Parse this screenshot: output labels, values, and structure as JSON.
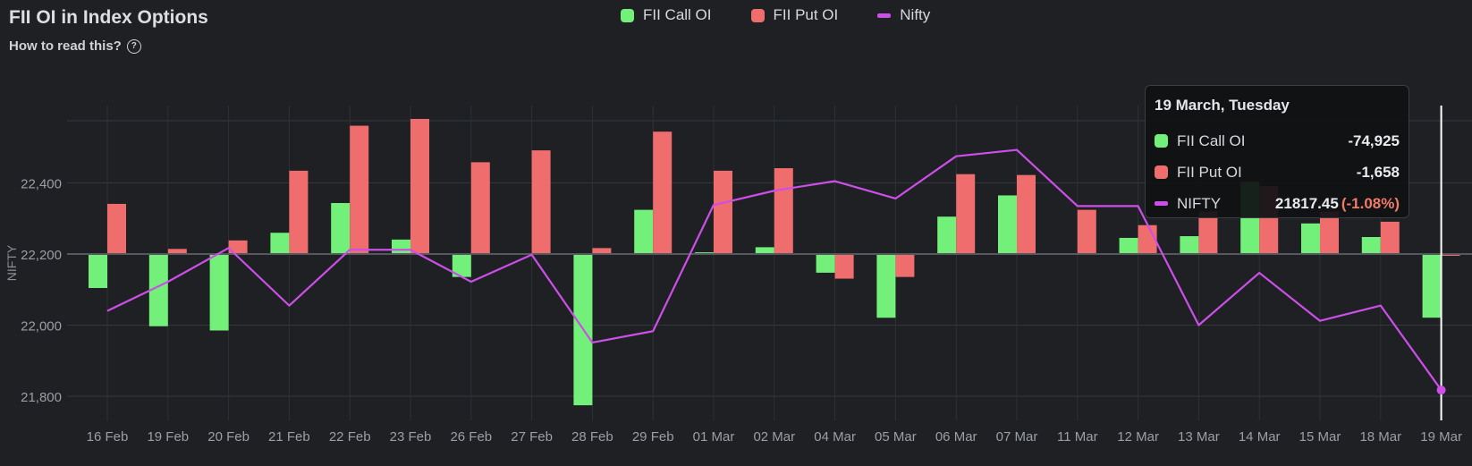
{
  "header": {
    "title": "FII OI in Index Options",
    "subtitle": "How to read this?",
    "help_icon": "?"
  },
  "legend": [
    {
      "label": "FII Call OI",
      "color": "#72f07a",
      "kind": "box"
    },
    {
      "label": "FII Put OI",
      "color": "#ef6d6d",
      "kind": "box"
    },
    {
      "label": "Nifty",
      "color": "#cc4fe8",
      "kind": "line"
    }
  ],
  "tooltip": {
    "date": "19 March, Tuesday",
    "call_label": "FII Call OI",
    "call_value": "-74,925",
    "put_label": "FII Put OI",
    "put_value": "-1,658",
    "nifty_label": "NIFTY",
    "nifty_value": "21817.45",
    "nifty_change": "(-1.08%)"
  },
  "chart_data": {
    "type": "bar",
    "categories": [
      "16 Feb",
      "19 Feb",
      "20 Feb",
      "21 Feb",
      "22 Feb",
      "23 Feb",
      "26 Feb",
      "27 Feb",
      "28 Feb",
      "29 Feb",
      "01 Mar",
      "02 Mar",
      "04 Mar",
      "05 Mar",
      "06 Mar",
      "07 Mar",
      "11 Mar",
      "12 Mar",
      "13 Mar",
      "14 Mar",
      "15 Mar",
      "18 Mar",
      "19 Mar"
    ],
    "series": [
      {
        "name": "FII Call OI",
        "type": "bar",
        "color": "#72f07a",
        "values": [
          -40000,
          -85000,
          -90000,
          25000,
          60000,
          17000,
          -27000,
          0,
          -178000,
          52000,
          2000,
          8000,
          -22000,
          -75000,
          44000,
          69000,
          0,
          19000,
          21000,
          85000,
          36000,
          20000,
          -74925
        ]
      },
      {
        "name": "FII Put OI",
        "type": "bar",
        "color": "#ef6d6d",
        "values": [
          59000,
          6000,
          16000,
          98000,
          151000,
          159000,
          108000,
          122000,
          7000,
          144000,
          98000,
          101000,
          -29000,
          -27000,
          94000,
          93000,
          52000,
          34000,
          50000,
          80000,
          50000,
          38000,
          -1658
        ]
      },
      {
        "name": "Nifty",
        "type": "line",
        "color": "#cc4fe8",
        "values": [
          22040,
          22122,
          22217,
          22055,
          22212,
          22212,
          22122,
          22198,
          21951,
          21983,
          22338,
          22378,
          22405,
          22356,
          22475,
          22493,
          22335,
          22335,
          22000,
          22147,
          22012,
          22055,
          21817.45
        ]
      }
    ],
    "ylabel": "NIFTY",
    "y_ticks": [
      21800,
      22000,
      22200,
      22400
    ],
    "ylim": [
      21722,
      22582
    ],
    "grid": true,
    "legend_position": "top-center",
    "highlighted_category": "19 Mar"
  }
}
